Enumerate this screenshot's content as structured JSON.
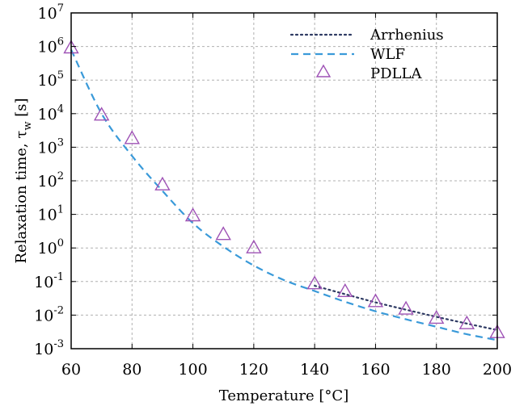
{
  "chart_data": {
    "type": "scatter",
    "xlabel": "Temperature [°C]",
    "ylabel": "Relaxation time, τ",
    "ylabel_subscript": "w",
    "ylabel_unit": " [s]",
    "xlim": [
      60,
      200
    ],
    "ylim": [
      0.001,
      10000000
    ],
    "y_scale": "log",
    "x_ticks": [
      60,
      80,
      100,
      120,
      140,
      160,
      180,
      200
    ],
    "y_tick_exponents": [
      -3,
      -2,
      -1,
      0,
      1,
      2,
      3,
      4,
      5,
      6,
      7
    ],
    "y_tick_base": "10",
    "grid": true,
    "legend_position": "top-right",
    "series": [
      {
        "name": "Arrhenius",
        "kind": "line",
        "style": "dotted",
        "color": "#2e3a63",
        "x": [
          140,
          150,
          160,
          170,
          180,
          190,
          200
        ],
        "y": [
          0.075,
          0.042,
          0.024,
          0.0145,
          0.0089,
          0.0056,
          0.0036
        ]
      },
      {
        "name": "WLF",
        "kind": "line",
        "style": "dashed",
        "color": "#3a9ad9",
        "x": [
          60,
          70,
          80,
          90,
          100,
          110,
          120,
          130,
          140,
          150,
          160,
          170,
          180,
          190,
          200
        ],
        "y": [
          800000,
          10000,
          550,
          50,
          5.5,
          1.1,
          0.3,
          0.11,
          0.052,
          0.025,
          0.013,
          0.0075,
          0.0045,
          0.0027,
          0.0018
        ]
      },
      {
        "name": "PDLLA",
        "kind": "scatter",
        "marker": "triangle",
        "color": "#9e52b5",
        "x": [
          60,
          70,
          80,
          90,
          100,
          110,
          120,
          140,
          150,
          160,
          170,
          180,
          190,
          200
        ],
        "y": [
          900000,
          9000,
          1800,
          75,
          9,
          2.5,
          1.0,
          0.085,
          0.05,
          0.025,
          0.015,
          0.008,
          0.0055,
          0.003
        ]
      }
    ]
  }
}
